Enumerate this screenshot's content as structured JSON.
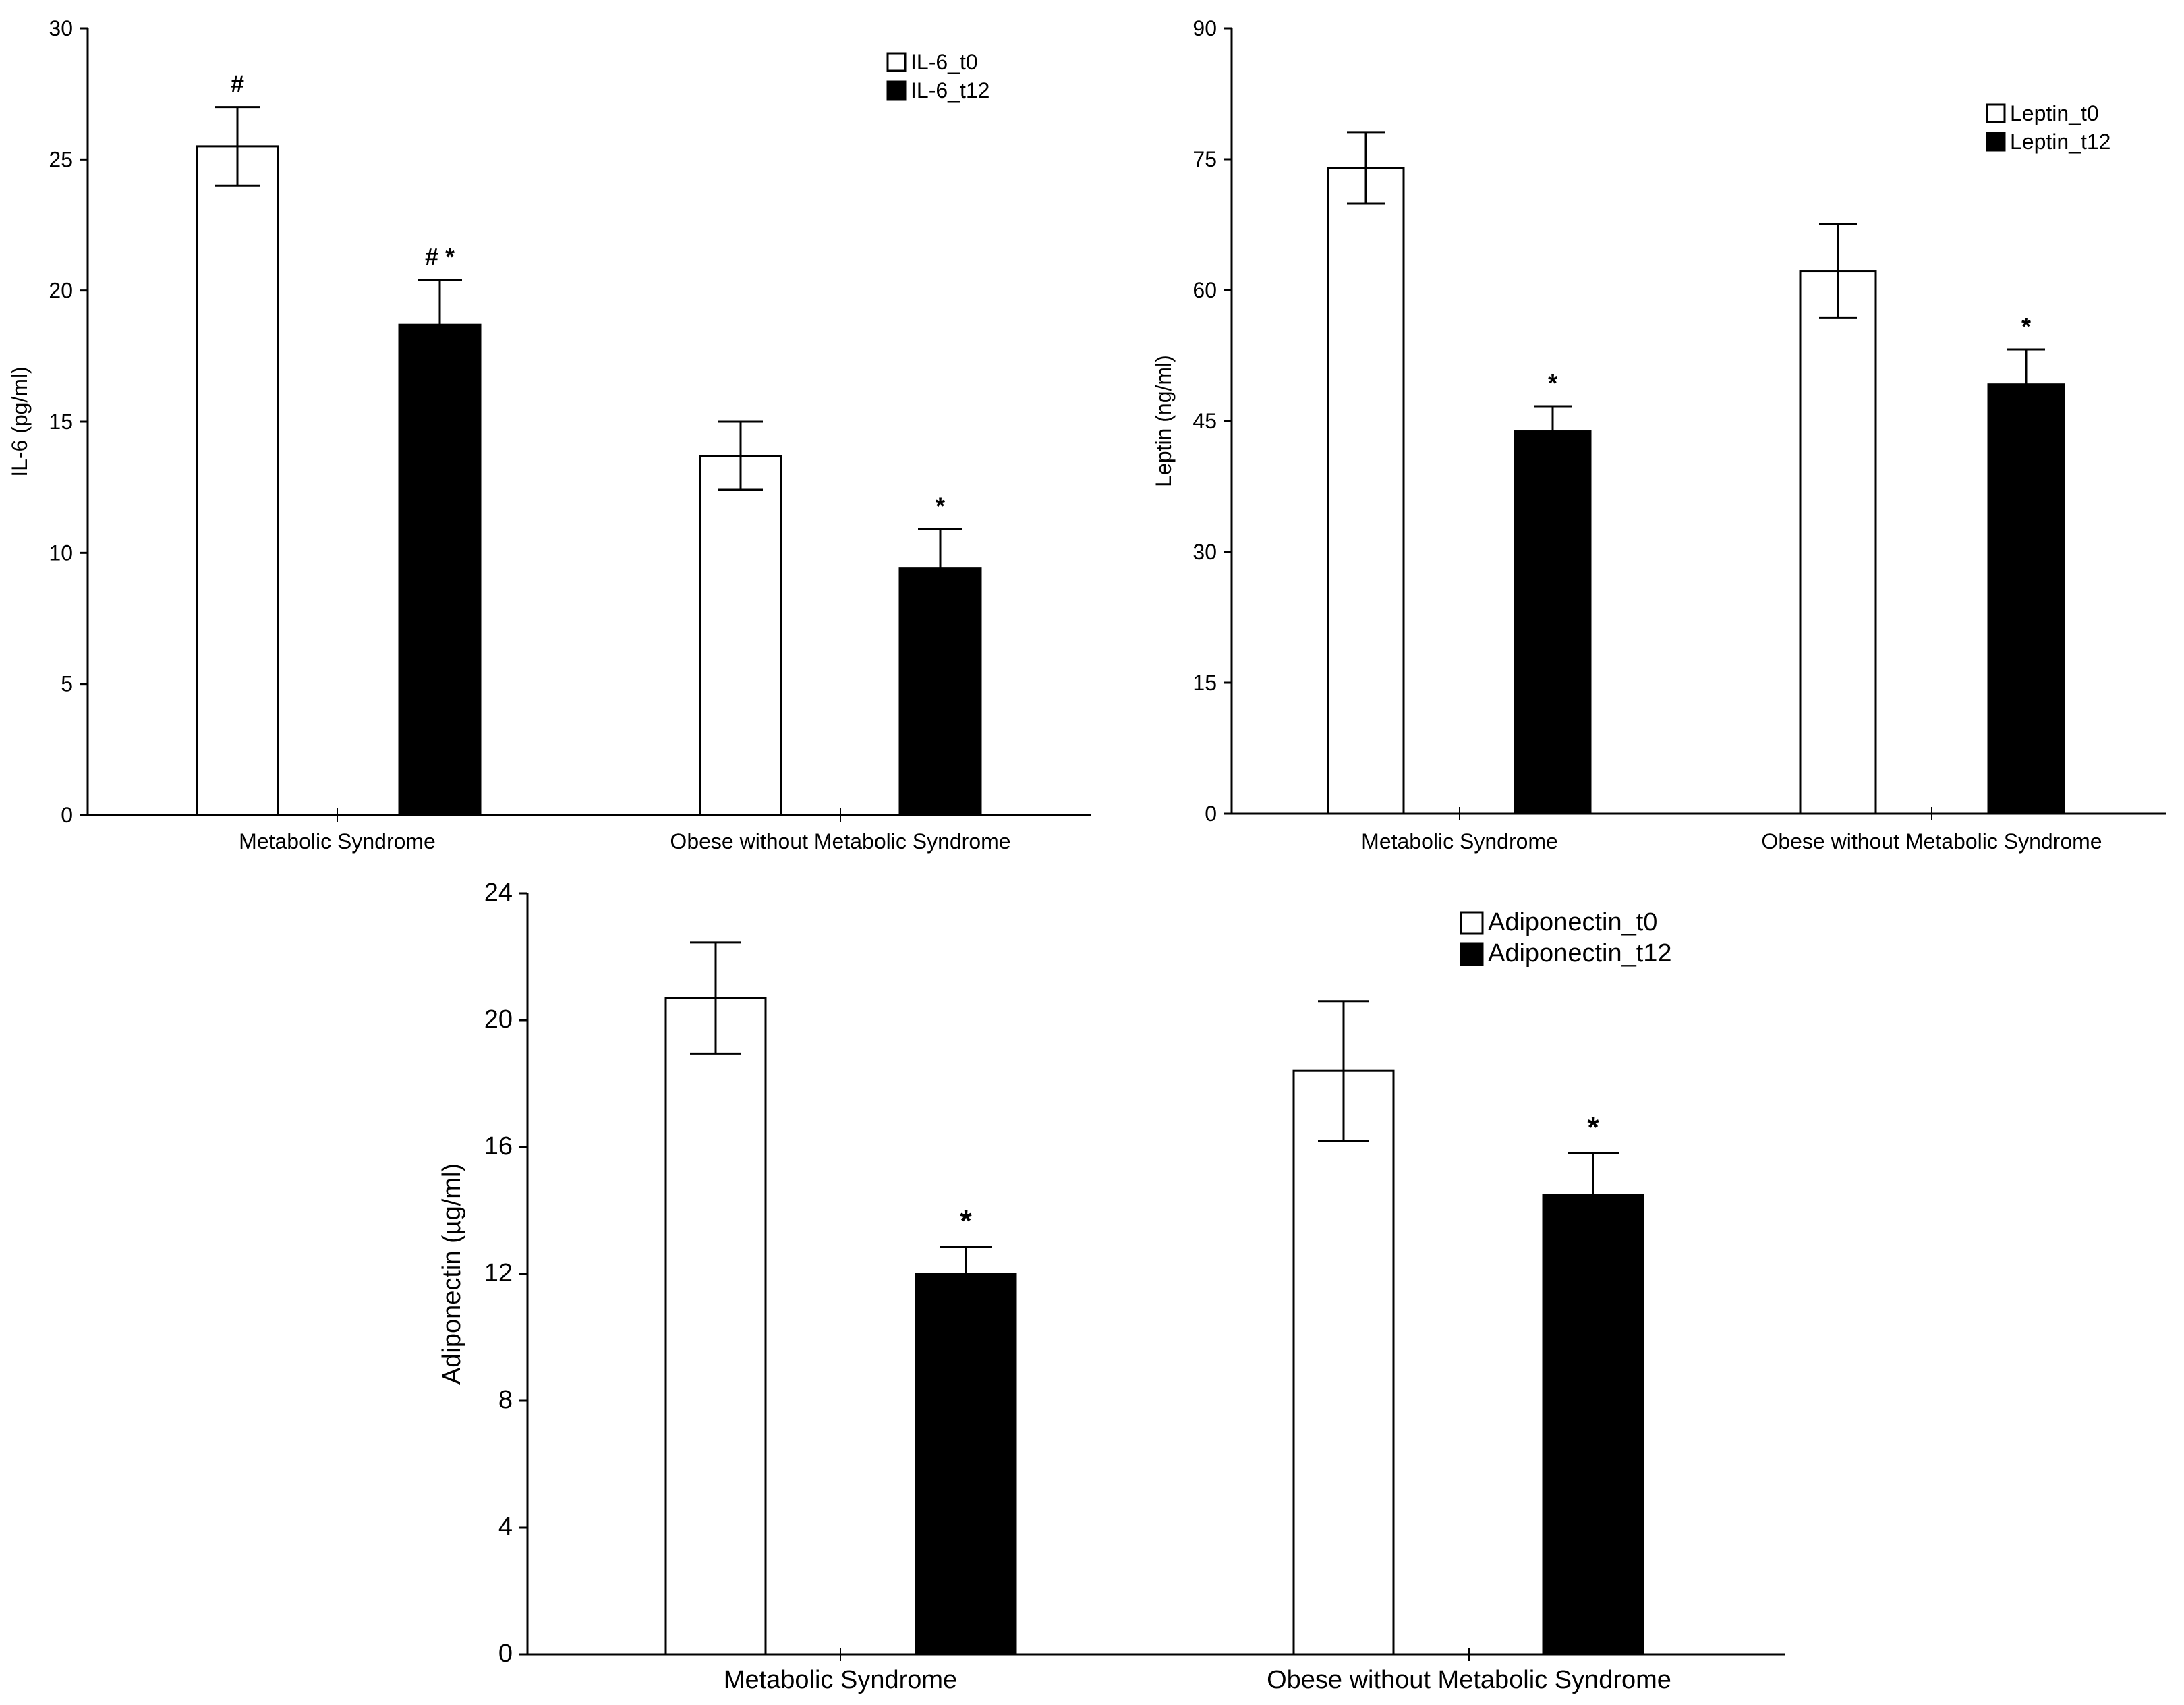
{
  "chart_data": [
    {
      "type": "bar",
      "ylabel": "IL-6 (pg/ml)",
      "categories": [
        "Metabolic Syndrome",
        "Obese without Metabolic Syndrome"
      ],
      "ylim": [
        0,
        30
      ],
      "yticks": [
        "0",
        "5",
        "10",
        "15",
        "20",
        "25",
        "30"
      ],
      "series": [
        {
          "name": "IL-6_t0",
          "fill": "#ffffff",
          "values": [
            25.5,
            13.7
          ],
          "errors": [
            1.5,
            1.3
          ],
          "annotations": [
            "#",
            ""
          ]
        },
        {
          "name": "IL-6_t12",
          "fill": "#000000",
          "values": [
            18.7,
            9.4
          ],
          "errors": [
            1.7,
            1.5
          ],
          "annotations": [
            "# *",
            "*"
          ]
        }
      ]
    },
    {
      "type": "bar",
      "ylabel": "Leptin (ng/ml)",
      "categories": [
        "Metabolic Syndrome",
        "Obese without Metabolic Syndrome"
      ],
      "ylim": [
        0,
        90
      ],
      "yticks": [
        "0",
        "15",
        "30",
        "45",
        "60",
        "75",
        "90"
      ],
      "series": [
        {
          "name": "Leptin_t0",
          "fill": "#ffffff",
          "values": [
            74.0,
            62.2
          ],
          "errors": [
            4.1,
            5.4
          ],
          "annotations": [
            "",
            ""
          ]
        },
        {
          "name": "Leptin_t12",
          "fill": "#000000",
          "values": [
            43.8,
            49.2
          ],
          "errors": [
            2.9,
            4.0
          ],
          "annotations": [
            "*",
            "*"
          ]
        }
      ]
    },
    {
      "type": "bar",
      "ylabel": "Adiponectin (µg/ml)",
      "categories": [
        "Metabolic Syndrome",
        "Obese without Metabolic Syndrome"
      ],
      "ylim": [
        0,
        24
      ],
      "yticks": [
        "0",
        "4",
        "8",
        "12",
        "16",
        "20",
        "24"
      ],
      "series": [
        {
          "name": "Adiponectin_t0",
          "fill": "#ffffff",
          "values": [
            20.7,
            18.4
          ],
          "errors": [
            1.75,
            2.2
          ],
          "annotations": [
            "",
            ""
          ]
        },
        {
          "name": "Adiponectin_t12",
          "fill": "#000000",
          "values": [
            12.0,
            14.5
          ],
          "errors": [
            0.85,
            1.3
          ],
          "annotations": [
            "*",
            "*"
          ]
        }
      ]
    }
  ]
}
